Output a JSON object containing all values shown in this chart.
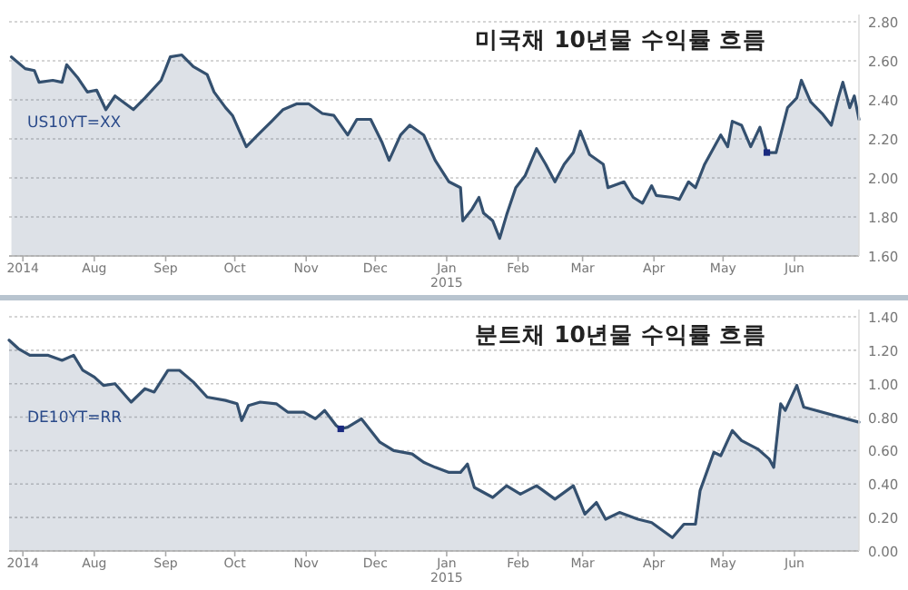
{
  "chart_data": [
    {
      "type": "area",
      "title": "미국채 10년물 수익률 흐름",
      "grid": "y",
      "xlim": [
        "2014-06-25",
        "2015-06-29"
      ],
      "ylim": [
        1.6,
        2.8
      ],
      "yticks": [
        {
          "value": 1.6,
          "label": "1.60"
        },
        {
          "value": 1.8,
          "label": "1.80"
        },
        {
          "value": 2.0,
          "label": "2.00"
        },
        {
          "value": 2.2,
          "label": "2.20"
        },
        {
          "value": 2.4,
          "label": "2.40"
        },
        {
          "value": 2.6,
          "label": "2.60"
        },
        {
          "value": 2.8,
          "label": "2.80"
        }
      ],
      "xticks": [
        {
          "value": "2014-07-01",
          "label": "2014"
        },
        {
          "value": "2014-08-01",
          "label": "Aug"
        },
        {
          "value": "2014-09-01",
          "label": "Sep"
        },
        {
          "value": "2014-10-01",
          "label": "Oct"
        },
        {
          "value": "2014-11-01",
          "label": "Nov"
        },
        {
          "value": "2014-12-01",
          "label": "Dec"
        },
        {
          "value": "2015-01-01",
          "label": "Jan\n2015"
        },
        {
          "value": "2015-02-01",
          "label": "Feb"
        },
        {
          "value": "2015-03-01",
          "label": "Mar"
        },
        {
          "value": "2015-04-01",
          "label": "Apr"
        },
        {
          "value": "2015-05-01",
          "label": "May"
        },
        {
          "value": "2015-06-01",
          "label": "Jun"
        }
      ],
      "series": [
        {
          "name": "US10YT=XX",
          "color": "#34506f",
          "x": [
            "2014-06-26",
            "2014-07-02",
            "2014-07-06",
            "2014-07-08",
            "2014-07-14",
            "2014-07-18",
            "2014-07-20",
            "2014-07-25",
            "2014-07-29",
            "2014-08-02",
            "2014-08-06",
            "2014-08-10",
            "2014-08-18",
            "2014-08-23",
            "2014-08-30",
            "2014-09-03",
            "2014-09-08",
            "2014-09-13",
            "2014-09-19",
            "2014-09-22",
            "2014-09-27",
            "2014-09-30",
            "2014-10-06",
            "2014-10-11",
            "2014-10-17",
            "2014-10-22",
            "2014-10-28",
            "2014-11-02",
            "2014-11-08",
            "2014-11-13",
            "2014-11-19",
            "2014-11-23",
            "2014-11-29",
            "2014-12-04",
            "2014-12-07",
            "2014-12-12",
            "2014-12-16",
            "2014-12-22",
            "2014-12-27",
            "2015-01-02",
            "2015-01-07",
            "2015-01-08",
            "2015-01-12",
            "2015-01-15",
            "2015-01-17",
            "2015-01-21",
            "2015-01-24",
            "2015-01-27",
            "2015-01-31",
            "2015-02-04",
            "2015-02-09",
            "2015-02-13",
            "2015-02-17",
            "2015-02-21",
            "2015-02-25",
            "2015-02-28",
            "2015-03-04",
            "2015-03-10",
            "2015-03-12",
            "2015-03-19",
            "2015-03-23",
            "2015-03-27",
            "2015-03-31",
            "2015-04-02",
            "2015-04-09",
            "2015-04-12",
            "2015-04-16",
            "2015-04-19",
            "2015-04-23",
            "2015-04-30",
            "2015-05-03",
            "2015-05-05",
            "2015-05-09",
            "2015-05-13",
            "2015-05-17",
            "2015-05-20",
            "2015-05-24",
            "2015-05-29",
            "2015-06-02",
            "2015-06-04",
            "2015-06-08",
            "2015-06-13",
            "2015-06-17",
            "2015-06-20",
            "2015-06-22",
            "2015-06-25",
            "2015-06-27",
            "2015-06-29"
          ],
          "values": [
            2.62,
            2.56,
            2.55,
            2.49,
            2.5,
            2.49,
            2.58,
            2.51,
            2.44,
            2.45,
            2.35,
            2.42,
            2.35,
            2.41,
            2.5,
            2.62,
            2.63,
            2.57,
            2.53,
            2.44,
            2.36,
            2.32,
            2.16,
            2.22,
            2.29,
            2.35,
            2.38,
            2.38,
            2.33,
            2.32,
            2.22,
            2.3,
            2.3,
            2.18,
            2.09,
            2.22,
            2.27,
            2.22,
            2.09,
            1.98,
            1.95,
            1.78,
            1.84,
            1.9,
            1.82,
            1.78,
            1.69,
            1.81,
            1.95,
            2.01,
            2.15,
            2.07,
            1.98,
            2.07,
            2.13,
            2.24,
            2.12,
            2.07,
            1.95,
            1.98,
            1.9,
            1.87,
            1.96,
            1.91,
            1.9,
            1.89,
            1.98,
            1.95,
            2.07,
            2.22,
            2.16,
            2.29,
            2.27,
            2.16,
            2.26,
            2.13,
            2.13,
            2.36,
            2.41,
            2.5,
            2.39,
            2.33,
            2.27,
            2.41,
            2.49,
            2.36,
            2.42,
            2.3
          ]
        },
        {
          "type": "scatter",
          "marker": "square",
          "color": "#1a2a80",
          "x": [
            "2015-05-20"
          ],
          "values": [
            2.13
          ]
        }
      ]
    },
    {
      "type": "area",
      "title": "분트채 10년물 수익률 흐름",
      "grid": "y",
      "xlim": [
        "2014-06-25",
        "2015-06-29"
      ],
      "ylim": [
        0,
        1.4
      ],
      "yticks": [
        {
          "value": 0,
          "label": "0.00"
        },
        {
          "value": 0.2,
          "label": "0.20"
        },
        {
          "value": 0.4,
          "label": "0.40"
        },
        {
          "value": 0.6,
          "label": "0.60"
        },
        {
          "value": 0.8,
          "label": "0.80"
        },
        {
          "value": 1.0,
          "label": "1.00"
        },
        {
          "value": 1.2,
          "label": "1.20"
        },
        {
          "value": 1.4,
          "label": "1.40"
        }
      ],
      "xticks": [
        {
          "value": "2014-07-01",
          "label": "2014"
        },
        {
          "value": "2014-08-01",
          "label": "Aug"
        },
        {
          "value": "2014-09-01",
          "label": "Sep"
        },
        {
          "value": "2014-10-01",
          "label": "Oct"
        },
        {
          "value": "2014-11-01",
          "label": "Nov"
        },
        {
          "value": "2014-12-01",
          "label": "Dec"
        },
        {
          "value": "2015-01-01",
          "label": "Jan\n2015"
        },
        {
          "value": "2015-02-01",
          "label": "Feb"
        },
        {
          "value": "2015-03-01",
          "label": "Mar"
        },
        {
          "value": "2015-04-01",
          "label": "Apr"
        },
        {
          "value": "2015-05-01",
          "label": "May"
        },
        {
          "value": "2015-06-01",
          "label": "Jun"
        }
      ],
      "series": [
        {
          "name": "DE10YT=RR",
          "color": "#34506f",
          "x": [
            "2014-06-25",
            "2014-06-29",
            "2014-07-04",
            "2014-07-12",
            "2014-07-18",
            "2014-07-23",
            "2014-07-27",
            "2014-08-01",
            "2014-08-05",
            "2014-08-10",
            "2014-08-17",
            "2014-08-23",
            "2014-08-27",
            "2014-09-02",
            "2014-09-07",
            "2014-09-13",
            "2014-09-19",
            "2014-09-27",
            "2014-10-02",
            "2014-10-04",
            "2014-10-07",
            "2014-10-12",
            "2014-10-19",
            "2014-10-24",
            "2014-10-31",
            "2014-11-05",
            "2014-11-09",
            "2014-11-14",
            "2014-11-16",
            "2014-11-19",
            "2014-11-25",
            "2014-12-03",
            "2014-12-09",
            "2014-12-17",
            "2014-12-22",
            "2014-12-27",
            "2015-01-02",
            "2015-01-07",
            "2015-01-10",
            "2015-01-13",
            "2015-01-21",
            "2015-01-27",
            "2015-02-02",
            "2015-02-09",
            "2015-02-17",
            "2015-02-25",
            "2015-03-02",
            "2015-03-07",
            "2015-03-11",
            "2015-03-17",
            "2015-03-25",
            "2015-03-31",
            "2015-04-06",
            "2015-04-09",
            "2015-04-14",
            "2015-04-19",
            "2015-04-21",
            "2015-04-27",
            "2015-04-30",
            "2015-05-05",
            "2015-05-09",
            "2015-05-16",
            "2015-05-21",
            "2015-05-23",
            "2015-05-26",
            "2015-05-28",
            "2015-06-02",
            "2015-06-05",
            "2015-06-29"
          ],
          "values": [
            1.26,
            1.21,
            1.17,
            1.17,
            1.14,
            1.17,
            1.08,
            1.04,
            0.99,
            1.0,
            0.89,
            0.97,
            0.95,
            1.08,
            1.08,
            1.01,
            0.92,
            0.9,
            0.88,
            0.78,
            0.87,
            0.89,
            0.88,
            0.83,
            0.83,
            0.79,
            0.84,
            0.75,
            0.73,
            0.74,
            0.79,
            0.65,
            0.6,
            0.58,
            0.53,
            0.5,
            0.47,
            0.47,
            0.52,
            0.38,
            0.32,
            0.39,
            0.34,
            0.39,
            0.31,
            0.39,
            0.22,
            0.29,
            0.19,
            0.23,
            0.19,
            0.17,
            0.11,
            0.08,
            0.16,
            0.16,
            0.36,
            0.59,
            0.57,
            0.72,
            0.66,
            0.61,
            0.55,
            0.5,
            0.88,
            0.84,
            0.99,
            0.86,
            0.77
          ]
        },
        {
          "type": "scatter",
          "marker": "square",
          "color": "#1a2a80",
          "x": [
            "2014-11-16"
          ],
          "values": [
            0.73
          ]
        }
      ]
    }
  ]
}
